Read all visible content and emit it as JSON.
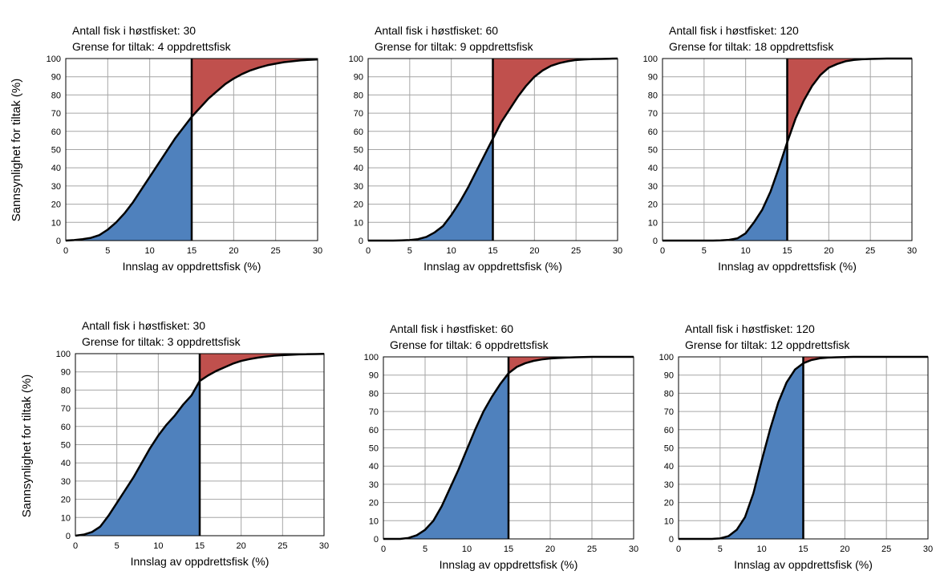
{
  "figure": {
    "ylabel_rows": [
      "Sannsynlighet for tiltak (%)",
      "Sannsynlighet for tiltak (%)"
    ]
  },
  "colors": {
    "below_threshold_fill": "#4f81bd",
    "above_threshold_fill": "#c0504d",
    "curve": "#000000",
    "grid": "#a6a6a6"
  },
  "chart_data": [
    {
      "type": "area",
      "title_lines": [
        "Antall fisk i høstfisket: 30",
        "Grense for tiltak: 4 oppdrettsfisk"
      ],
      "xlabel": "Innslag av oppdrettsfisk (%)",
      "ylabel": "Sannsynlighet for tiltak (%)",
      "xlim": [
        0,
        30
      ],
      "ylim": [
        0,
        100
      ],
      "xticks": [
        0,
        5,
        10,
        15,
        20,
        25,
        30
      ],
      "yticks": [
        0,
        10,
        20,
        30,
        40,
        50,
        60,
        70,
        80,
        90,
        100
      ],
      "grid": true,
      "threshold_x": 15,
      "x": [
        0,
        1,
        2,
        3,
        4,
        5,
        6,
        7,
        8,
        9,
        10,
        11,
        12,
        13,
        14,
        15,
        16,
        17,
        18,
        19,
        20,
        21,
        22,
        23,
        24,
        25,
        26,
        27,
        28,
        29,
        30
      ],
      "y": [
        0,
        0.3,
        0.8,
        1.5,
        3,
        6,
        10,
        15,
        21,
        28,
        35,
        42,
        49,
        56,
        62,
        68,
        73,
        78,
        82,
        86,
        89,
        91.5,
        93.5,
        95,
        96.3,
        97.2,
        98,
        98.5,
        99,
        99.3,
        99.5
      ]
    },
    {
      "type": "area",
      "title_lines": [
        "Antall fisk i høstfisket: 60",
        "Grense for tiltak: 9 oppdrettsfisk"
      ],
      "xlabel": "Innslag av oppdrettsfisk (%)",
      "ylabel": "",
      "xlim": [
        0,
        30
      ],
      "ylim": [
        0,
        100
      ],
      "xticks": [
        0,
        5,
        10,
        15,
        20,
        25,
        30
      ],
      "yticks": [
        0,
        10,
        20,
        30,
        40,
        50,
        60,
        70,
        80,
        90,
        100
      ],
      "grid": true,
      "threshold_x": 15,
      "x": [
        0,
        1,
        2,
        3,
        4,
        5,
        6,
        7,
        8,
        9,
        10,
        11,
        12,
        13,
        14,
        15,
        16,
        17,
        18,
        19,
        20,
        21,
        22,
        23,
        24,
        25,
        26,
        27,
        28,
        29,
        30
      ],
      "y": [
        0,
        0,
        0,
        0,
        0.1,
        0.3,
        0.8,
        2,
        4.5,
        8,
        14,
        21,
        29,
        38,
        47,
        56,
        65,
        72,
        79,
        85,
        90,
        93.5,
        96,
        97.5,
        98.5,
        99.2,
        99.5,
        99.7,
        99.8,
        99.9,
        100
      ]
    },
    {
      "type": "area",
      "title_lines": [
        "Antall fisk i høstfisket: 120",
        "Grense for tiltak: 18 oppdrettsfisk"
      ],
      "xlabel": "Innslag av oppdrettsfisk (%)",
      "ylabel": "",
      "xlim": [
        0,
        30
      ],
      "ylim": [
        0,
        100
      ],
      "xticks": [
        0,
        5,
        10,
        15,
        20,
        25,
        30
      ],
      "yticks": [
        0,
        10,
        20,
        30,
        40,
        50,
        60,
        70,
        80,
        90,
        100
      ],
      "grid": true,
      "threshold_x": 15,
      "x": [
        0,
        1,
        2,
        3,
        4,
        5,
        6,
        7,
        8,
        9,
        10,
        11,
        12,
        13,
        14,
        15,
        16,
        17,
        18,
        19,
        20,
        21,
        22,
        23,
        24,
        25,
        26,
        27,
        28,
        29,
        30
      ],
      "y": [
        0,
        0,
        0,
        0,
        0,
        0,
        0,
        0.1,
        0.4,
        1.2,
        4,
        10,
        17,
        27,
        40,
        54,
        67,
        77,
        85,
        91,
        95,
        97,
        98.5,
        99.2,
        99.6,
        99.8,
        99.9,
        100,
        100,
        100,
        100
      ]
    },
    {
      "type": "area",
      "title_lines": [
        "Antall fisk i høstfisket: 30",
        "Grense for tiltak: 3 oppdrettsfisk"
      ],
      "xlabel": "Innslag av oppdrettsfisk (%)",
      "ylabel": "Sannsynlighet for tiltak (%)",
      "xlim": [
        0,
        30
      ],
      "ylim": [
        0,
        100
      ],
      "xticks": [
        0,
        5,
        10,
        15,
        20,
        25,
        30
      ],
      "yticks": [
        0,
        10,
        20,
        30,
        40,
        50,
        60,
        70,
        80,
        90,
        100
      ],
      "grid": true,
      "threshold_x": 15,
      "x": [
        0,
        1,
        2,
        3,
        4,
        5,
        6,
        7,
        8,
        9,
        10,
        11,
        12,
        13,
        14,
        15,
        16,
        17,
        18,
        19,
        20,
        21,
        22,
        23,
        24,
        25,
        26,
        27,
        28,
        29,
        30
      ],
      "y": [
        0,
        0.6,
        2,
        5,
        11,
        18,
        25,
        32,
        40,
        48,
        55,
        61,
        66,
        72,
        77,
        85,
        88,
        90.5,
        92.5,
        94.5,
        96,
        97,
        97.8,
        98.4,
        98.9,
        99.2,
        99.4,
        99.6,
        99.7,
        99.8,
        99.9
      ]
    },
    {
      "type": "area",
      "title_lines": [
        "Antall fisk i høstfisket: 60",
        "Grense for tiltak: 6 oppdrettsfisk"
      ],
      "xlabel": "Innslag av oppdrettsfisk (%)",
      "ylabel": "",
      "xlim": [
        0,
        30
      ],
      "ylim": [
        0,
        100
      ],
      "xticks": [
        0,
        5,
        10,
        15,
        20,
        25,
        30
      ],
      "yticks": [
        0,
        10,
        20,
        30,
        40,
        50,
        60,
        70,
        80,
        90,
        100
      ],
      "grid": true,
      "threshold_x": 15,
      "x": [
        0,
        1,
        2,
        3,
        4,
        5,
        6,
        7,
        8,
        9,
        10,
        11,
        12,
        13,
        14,
        15,
        16,
        17,
        18,
        19,
        20,
        21,
        22,
        23,
        24,
        25,
        26,
        27,
        28,
        29,
        30
      ],
      "y": [
        0,
        0,
        0,
        0.5,
        2,
        5,
        10,
        18,
        28,
        38,
        49,
        60,
        70,
        78,
        85,
        91,
        94.5,
        96.5,
        97.8,
        98.6,
        99.1,
        99.4,
        99.6,
        99.8,
        99.9,
        100,
        100,
        100,
        100,
        100,
        100
      ]
    },
    {
      "type": "area",
      "title_lines": [
        "Antall fisk i høstfisket: 120",
        "Grense for tiltak: 12 oppdrettsfisk"
      ],
      "xlabel": "Innslag av oppdrettsfisk (%)",
      "ylabel": "",
      "xlim": [
        0,
        30
      ],
      "ylim": [
        0,
        100
      ],
      "xticks": [
        0,
        5,
        10,
        15,
        20,
        25,
        30
      ],
      "yticks": [
        0,
        10,
        20,
        30,
        40,
        50,
        60,
        70,
        80,
        90,
        100
      ],
      "grid": true,
      "threshold_x": 15,
      "x": [
        0,
        1,
        2,
        3,
        4,
        5,
        6,
        7,
        8,
        9,
        10,
        11,
        12,
        13,
        14,
        15,
        16,
        17,
        18,
        19,
        20,
        21,
        22,
        23,
        24,
        25,
        26,
        27,
        28,
        29,
        30
      ],
      "y": [
        0,
        0,
        0,
        0,
        0,
        0.3,
        1.5,
        5,
        12,
        25,
        43,
        60,
        75,
        86,
        93,
        96.5,
        98.3,
        99.2,
        99.6,
        99.8,
        99.9,
        100,
        100,
        100,
        100,
        100,
        100,
        100,
        100,
        100,
        100
      ]
    }
  ]
}
